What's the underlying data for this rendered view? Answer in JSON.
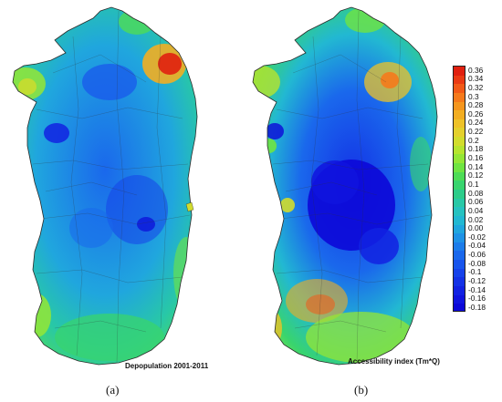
{
  "maps": [
    {
      "id": "a",
      "caption": "Depopulation 2001-2011",
      "panel_label": "(a)"
    },
    {
      "id": "b",
      "caption": "Accessibility index (Tm*Q)",
      "panel_label": "(b)"
    }
  ],
  "legend": {
    "values": [
      "0.36",
      "0.34",
      "0.32",
      "0.3",
      "0.28",
      "0.26",
      "0.24",
      "0.22",
      "0.2",
      "0.18",
      "0.16",
      "0.14",
      "0.12",
      "0.1",
      "0.08",
      "0.06",
      "0.04",
      "0.02",
      "0.00",
      "-0.02",
      "-0.04",
      "-0.06",
      "-0.08",
      "-0.1",
      "-0.12",
      "-0.14",
      "-0.16",
      "-0.18"
    ],
    "colors": [
      "#e02010",
      "#ea3a14",
      "#f25a18",
      "#f57a1c",
      "#f5961e",
      "#f2ae22",
      "#eec228",
      "#e4d02c",
      "#d2dc2c",
      "#b6e42e",
      "#94e636",
      "#6fe442",
      "#4edc56",
      "#38d46e",
      "#2ccc8a",
      "#28c8a6",
      "#26c2c0",
      "#22b8d2",
      "#20a6de",
      "#1e92e6",
      "#1c7cea",
      "#1a68ec",
      "#1854ec",
      "#1642ea",
      "#1432e6",
      "#1222e2",
      "#1014de",
      "#0c08d8"
    ]
  },
  "colors": {
    "high": "#e02010",
    "mid": "#d2dc2c",
    "zero": "#26c2c0",
    "low": "#0c08d8"
  }
}
